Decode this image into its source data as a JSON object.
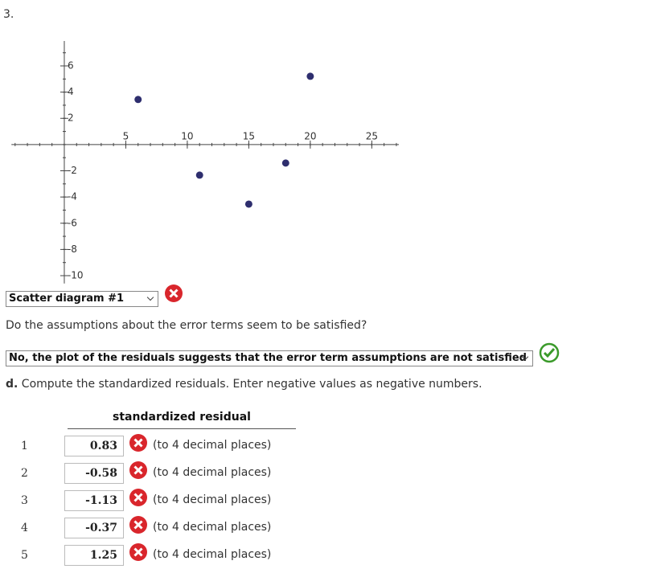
{
  "question_number": "3.",
  "chart_data": {
    "type": "scatter",
    "x": [
      6,
      11,
      15,
      18,
      20
    ],
    "y": [
      3.44,
      -2.33,
      -4.54,
      -1.41,
      5.21
    ],
    "color": "#2e2e6e",
    "xlim": [
      -4.3,
      27.2
    ],
    "ylim": [
      -10.6,
      7.9
    ],
    "xticks": [
      5,
      10,
      15,
      20,
      25
    ],
    "yticks": [
      6,
      4,
      2,
      -2,
      -4,
      -6,
      -8,
      -10
    ]
  },
  "scatter_select": {
    "value": "Scatter diagram #1"
  },
  "assumption_question": "Do the assumptions about the error terms seem to be satisfied?",
  "assumption_select": {
    "value": "No, the plot of the residuals suggests that the error term assumptions are not satisfied"
  },
  "part_d": {
    "label": "d.",
    "text": "Compute the standardized residuals. Enter negative values as negative numbers."
  },
  "table": {
    "header": "standardized residual",
    "rows": [
      {
        "index": "1",
        "value": "0.83",
        "note": "(to 4 decimal places)"
      },
      {
        "index": "2",
        "value": "-0.58",
        "note": "(to 4 decimal places)"
      },
      {
        "index": "3",
        "value": "-1.13",
        "note": "(to 4 decimal places)"
      },
      {
        "index": "4",
        "value": "-0.37",
        "note": "(to 4 decimal places)"
      },
      {
        "index": "5",
        "value": "1.25",
        "note": "(to 4 decimal places)"
      }
    ]
  }
}
